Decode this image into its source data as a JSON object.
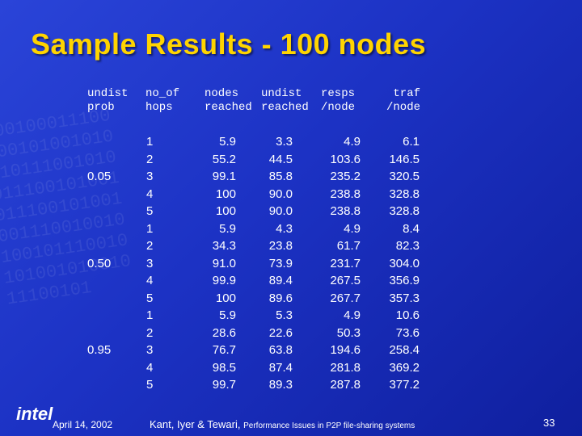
{
  "title": "Sample Results - 100 nodes",
  "table": {
    "header": [
      [
        "undist",
        "prob"
      ],
      [
        "no_of",
        "hops"
      ],
      [
        "nodes",
        "reached"
      ],
      [
        "undist",
        "reached"
      ],
      [
        "resps",
        "/node"
      ],
      [
        "traf",
        "/node"
      ]
    ],
    "groups": [
      {
        "prob": "0.05",
        "rows": [
          [
            "1",
            "5.9",
            "3.3",
            "4.9",
            "6.1"
          ],
          [
            "2",
            "55.2",
            "44.5",
            "103.6",
            "146.5"
          ],
          [
            "3",
            "99.1",
            "85.8",
            "235.2",
            "320.5"
          ],
          [
            "4",
            "100",
            "90.0",
            "238.8",
            "328.8"
          ],
          [
            "5",
            "100",
            "90.0",
            "238.8",
            "328.8"
          ]
        ]
      },
      {
        "prob": "0.50",
        "rows": [
          [
            "1",
            "5.9",
            "4.3",
            "4.9",
            "8.4"
          ],
          [
            "2",
            "34.3",
            "23.8",
            "61.7",
            "82.3"
          ],
          [
            "3",
            "91.0",
            "73.9",
            "231.7",
            "304.0"
          ],
          [
            "4",
            "99.9",
            "89.4",
            "267.5",
            "356.9"
          ],
          [
            "5",
            "100",
            "89.6",
            "267.7",
            "357.3"
          ]
        ]
      },
      {
        "prob": "0.95",
        "rows": [
          [
            "1",
            "5.9",
            "5.3",
            "4.9",
            "10.6"
          ],
          [
            "2",
            "28.6",
            "22.6",
            "50.3",
            "73.6"
          ],
          [
            "3",
            "76.7",
            "63.8",
            "194.6",
            "258.4"
          ],
          [
            "4",
            "98.5",
            "87.4",
            "281.8",
            "369.2"
          ],
          [
            "5",
            "99.7",
            "89.3",
            "287.8",
            "377.2"
          ]
        ]
      }
    ]
  },
  "footer": {
    "logo": "intel",
    "date": "April 14, 2002",
    "authors": "Kant, Iyer & Tewari,",
    "paper": "Performance Issues in P2P file-sharing systems",
    "page": "33"
  }
}
